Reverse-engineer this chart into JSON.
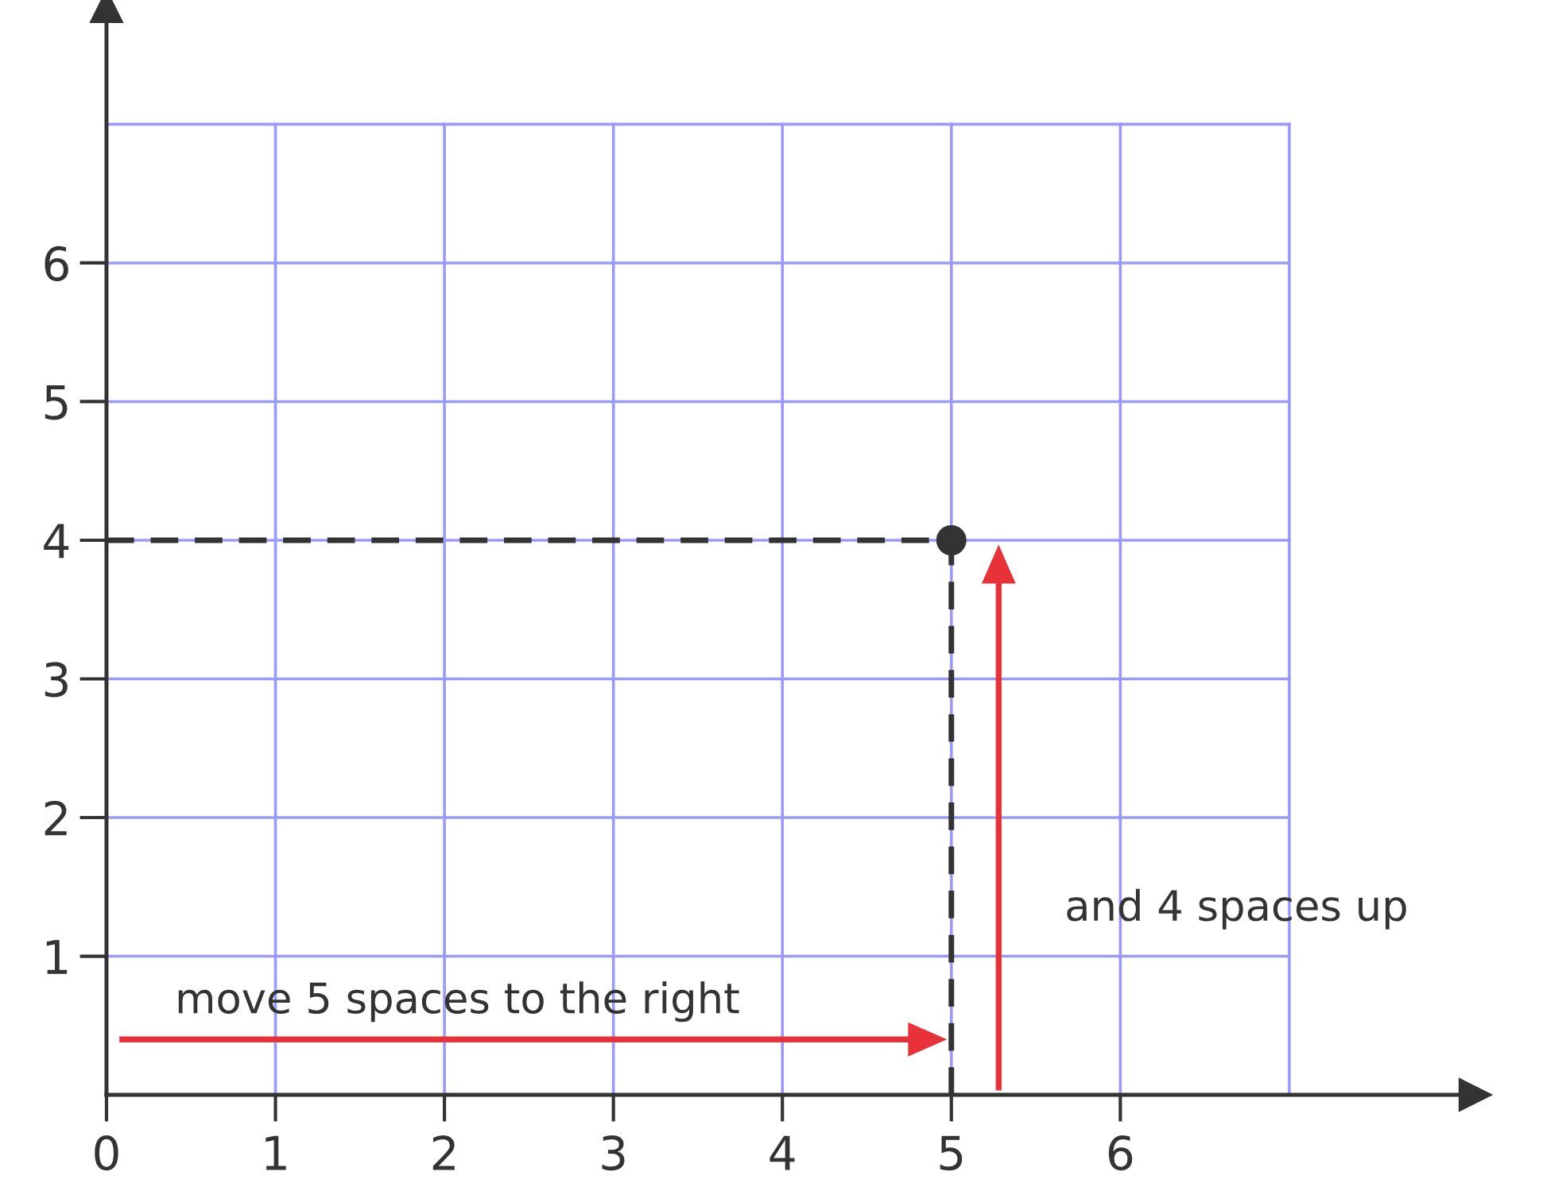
{
  "chart_data": {
    "type": "scatter",
    "x": [
      5
    ],
    "values": [
      4
    ],
    "color": "#333333",
    "marker": "circle",
    "xlim": [
      0,
      8.1
    ],
    "ylim": [
      0,
      7.85
    ],
    "xticks": [
      0,
      1,
      2,
      3,
      4,
      5,
      6,
      {
        "value": 7,
        "label": null
      }
    ],
    "yticks": [
      1,
      2,
      3,
      4,
      5,
      6,
      {
        "value": 7,
        "label": null
      }
    ],
    "grid": true,
    "ref_lines": [
      {
        "axis": "x",
        "value": 5,
        "color": "#333333",
        "line_style": "dashed"
      },
      {
        "axis": "y",
        "value": 4,
        "color": "#333333",
        "line_style": "dashed"
      }
    ],
    "annotations": [
      "move 5 spaces to the right",
      "and 4 spaces up"
    ]
  }
}
